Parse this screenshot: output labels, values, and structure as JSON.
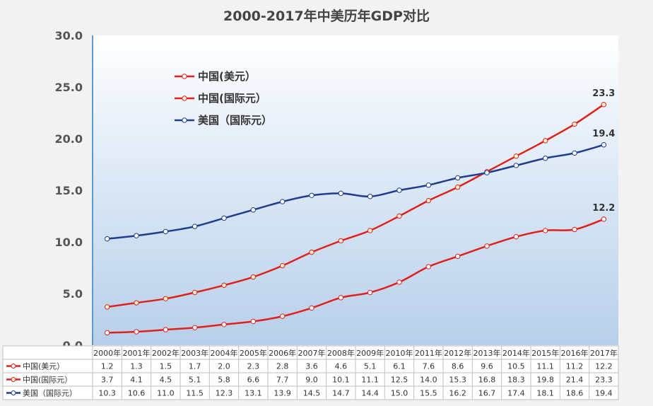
{
  "chart_data": {
    "type": "line",
    "title": "2000-2017年中美历年GDP对比",
    "x": [
      "2000年",
      "2001年",
      "2002年",
      "2003年",
      "2004年",
      "2005年",
      "2006年",
      "2007年",
      "2008年",
      "2009年",
      "2010年",
      "2011年",
      "2012年",
      "2013年",
      "2014年",
      "2015年",
      "2016年",
      "2017年"
    ],
    "ylim": [
      0,
      30
    ],
    "yticks": [
      "0.0",
      "5.0",
      "10.0",
      "15.0",
      "20.0",
      "25.0",
      "30.0"
    ],
    "legend_position": "top-left",
    "series": [
      {
        "name": "中国(美元）",
        "color": "#e0201b",
        "marker_fill": "#ffffff",
        "values": [
          1.2,
          1.3,
          1.5,
          1.7,
          2.0,
          2.3,
          2.8,
          3.6,
          4.6,
          5.1,
          6.1,
          7.6,
          8.6,
          9.6,
          10.5,
          11.1,
          11.2,
          12.2
        ],
        "end_label": "12.2"
      },
      {
        "name": "中国(国际元）",
        "color": "#e0201b",
        "marker_fill": "#fff2cc",
        "values": [
          3.7,
          4.1,
          4.5,
          5.1,
          5.8,
          6.6,
          7.7,
          9.0,
          10.1,
          11.1,
          12.5,
          14.0,
          15.3,
          16.8,
          18.3,
          19.8,
          21.4,
          23.3
        ],
        "end_label": "23.3"
      },
      {
        "name": "美国（国际元）",
        "color": "#1f3d8f",
        "marker_fill": "#ffffff",
        "values": [
          10.3,
          10.6,
          11.0,
          11.5,
          12.3,
          13.1,
          13.9,
          14.5,
          14.7,
          14.4,
          15.0,
          15.5,
          16.2,
          16.7,
          17.4,
          18.1,
          18.6,
          19.4
        ],
        "end_label": "19.4"
      }
    ],
    "table": {
      "rows": [
        {
          "label": "中国(美元）",
          "cells": [
            "1.2",
            "1.3",
            "1.5",
            "1.7",
            "2.0",
            "2.3",
            "2.8",
            "3.6",
            "4.6",
            "5.1",
            "6.1",
            "7.6",
            "8.6",
            "9.6",
            "10.5",
            "11.1",
            "11.2",
            "12.2"
          ]
        },
        {
          "label": "中国(国际元）",
          "cells": [
            "3.7",
            "4.1",
            "4.5",
            "5.1",
            "5.8",
            "6.6",
            "7.7",
            "9.0",
            "10.1",
            "11.1",
            "12.5",
            "14.0",
            "15.3",
            "16.8",
            "18.3",
            "19.8",
            "21.4",
            "23.3"
          ]
        },
        {
          "label": "美国（国际元）",
          "cells": [
            "10.3",
            "10.6",
            "11.0",
            "11.5",
            "12.3",
            "13.1",
            "13.9",
            "14.5",
            "14.7",
            "14.4",
            "15.0",
            "15.5",
            "16.2",
            "16.7",
            "17.4",
            "18.1",
            "18.6",
            "19.4"
          ]
        }
      ]
    }
  }
}
